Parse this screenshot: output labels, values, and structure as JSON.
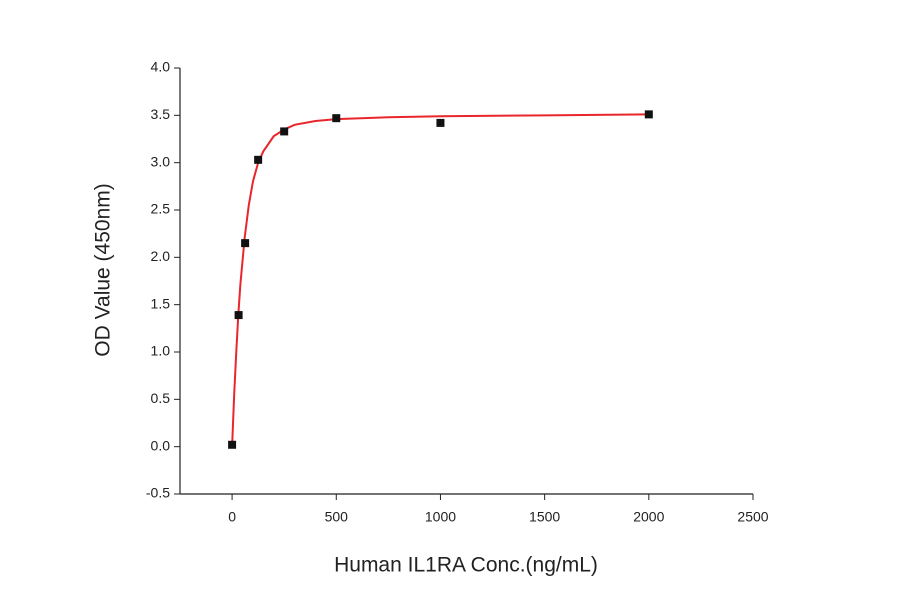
{
  "chart_data": {
    "type": "scatter",
    "x_label": "Human IL1RA Conc.(ng/mL)",
    "y_label": "OD Value (450nm)",
    "xlim": [
      -250,
      2500
    ],
    "xticks": [
      0,
      500,
      1000,
      1500,
      2000,
      2500
    ],
    "ylim": [
      -0.5,
      4.0
    ],
    "yticks": [
      -0.5,
      {
        "value": 0,
        "label": "0.0"
      },
      0.5,
      {
        "value": 1,
        "label": "1.0"
      },
      1.5,
      {
        "value": 2,
        "label": "2.0"
      },
      2.5,
      {
        "value": 3,
        "label": "3.0"
      },
      3.5,
      {
        "value": 4,
        "label": "4.0"
      }
    ],
    "grid": false,
    "series": [
      {
        "type": "scatter",
        "marker": "square",
        "color": "#111111",
        "x": [
          0,
          31.25,
          62.5,
          125,
          250,
          500,
          1000,
          2000
        ],
        "values": [
          0.02,
          1.39,
          2.15,
          3.03,
          3.33,
          3.47,
          3.42,
          3.51
        ]
      },
      {
        "type": "line",
        "color": "#e8262b",
        "x": [
          0,
          10,
          20,
          30,
          40,
          60,
          80,
          100,
          125,
          150,
          200,
          250,
          300,
          400,
          500,
          750,
          1000,
          1500,
          2000
        ],
        "values": [
          0,
          0.55,
          1.0,
          1.4,
          1.72,
          2.2,
          2.55,
          2.8,
          3.0,
          3.12,
          3.28,
          3.35,
          3.4,
          3.44,
          3.46,
          3.48,
          3.49,
          3.5,
          3.51
        ]
      }
    ]
  }
}
